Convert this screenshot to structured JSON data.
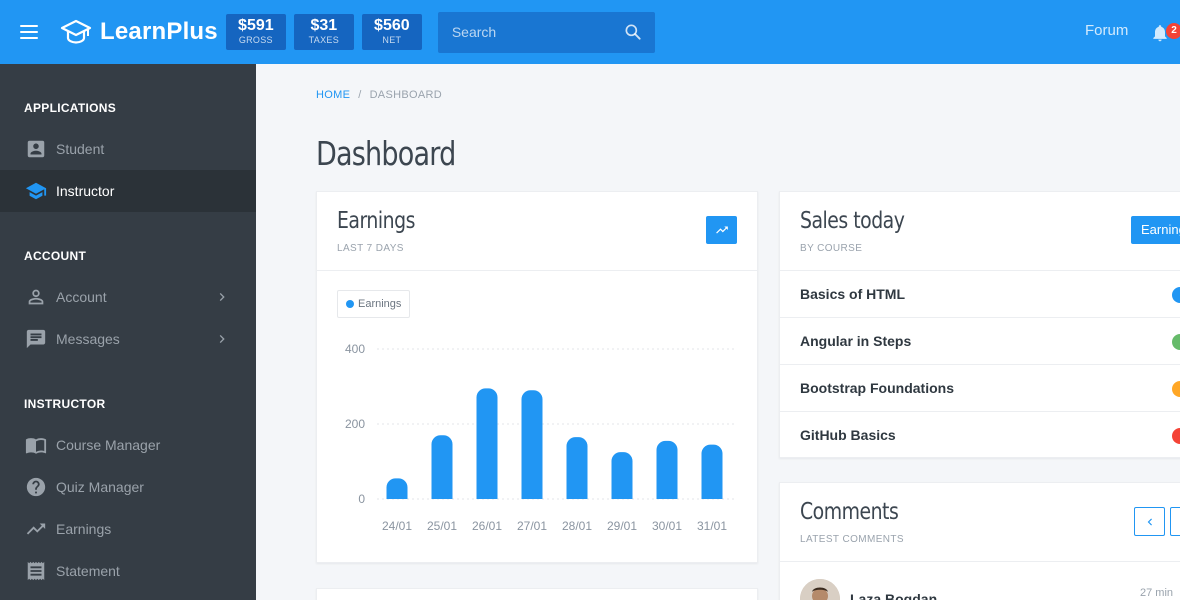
{
  "topbar": {
    "brand": "LearnPlus",
    "stats": [
      {
        "value": "$591",
        "label": "GROSS"
      },
      {
        "value": "$31",
        "label": "TAXES"
      },
      {
        "value": "$560",
        "label": "NET"
      }
    ],
    "search_placeholder": "Search",
    "forum_label": "Forum",
    "notification_count": "2",
    "colors": {
      "primary": "#2196f3",
      "stat_bg": "#1565c0",
      "search_bg": "#1976d2",
      "badge": "#f44336"
    }
  },
  "sidebar": {
    "sections": [
      {
        "title": "APPLICATIONS",
        "items": [
          {
            "label": "Student",
            "icon": "account-box-icon",
            "active": false
          },
          {
            "label": "Instructor",
            "icon": "school-icon",
            "active": true
          }
        ]
      },
      {
        "title": "ACCOUNT",
        "items": [
          {
            "label": "Account",
            "icon": "person-outline-icon",
            "has_submenu": true
          },
          {
            "label": "Messages",
            "icon": "message-icon",
            "has_submenu": true
          }
        ]
      },
      {
        "title": "INSTRUCTOR",
        "items": [
          {
            "label": "Course Manager",
            "icon": "import-contacts-icon"
          },
          {
            "label": "Quiz Manager",
            "icon": "help-icon"
          },
          {
            "label": "Earnings",
            "icon": "trending-up-icon"
          },
          {
            "label": "Statement",
            "icon": "receipt-icon"
          }
        ]
      }
    ],
    "colors": {
      "bg": "#353d45",
      "active_bg": "#2b3238"
    }
  },
  "breadcrumb": {
    "home": "HOME",
    "current": "DASHBOARD"
  },
  "page_title": "Dashboard",
  "earnings_card": {
    "title": "Earnings",
    "subtitle": "LAST 7 DAYS",
    "button_icon": "trending-up-icon",
    "legend": "Earnings"
  },
  "chart_data": {
    "type": "bar",
    "categories": [
      "24/01",
      "25/01",
      "26/01",
      "27/01",
      "28/01",
      "29/01",
      "30/01",
      "31/01"
    ],
    "series": [
      {
        "name": "Earnings",
        "values": [
          55,
          170,
          295,
          290,
          165,
          125,
          155,
          145
        ]
      }
    ],
    "ylim": [
      0,
      400
    ],
    "yticks": [
      0,
      200,
      400
    ],
    "grid": true,
    "legend_position": "top-left",
    "color": "#2196f3"
  },
  "sales_card": {
    "title": "Sales today",
    "subtitle": "BY COURSE",
    "button_label": "Earnings",
    "courses": [
      {
        "name": "Basics of HTML",
        "color": "#2196f3"
      },
      {
        "name": "Angular in Steps",
        "color": "#66bb6a"
      },
      {
        "name": "Bootstrap Foundations",
        "color": "#ffa726"
      },
      {
        "name": "GitHub Basics",
        "color": "#f44336"
      }
    ]
  },
  "comments_card": {
    "title": "Comments",
    "subtitle": "LATEST COMMENTS",
    "comments": [
      {
        "author": "Laza Bogdan",
        "time": "27 min"
      }
    ]
  }
}
